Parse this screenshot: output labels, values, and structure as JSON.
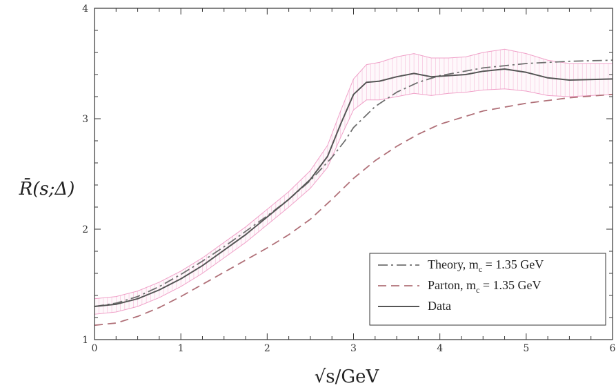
{
  "chart_data": {
    "type": "line",
    "title": "",
    "xlabel": "√s/GeV",
    "ylabel": "R̄(s;Δ)",
    "xlim": [
      0,
      6
    ],
    "ylim": [
      1,
      4
    ],
    "x_ticks": [
      "0",
      "1",
      "2",
      "3",
      "4",
      "5",
      "6"
    ],
    "y_ticks": [
      "1",
      "2",
      "3",
      "4"
    ],
    "grid": false,
    "legend_position": "bottom-right",
    "series": [
      {
        "name": "Theory, m",
        "name_subscript": "c",
        "name_suffix": " = 1.35 GeV",
        "style": "dash-dot",
        "color": "#6f6f6f",
        "x": [
          0,
          0.25,
          0.5,
          0.75,
          1.0,
          1.25,
          1.5,
          1.75,
          2.0,
          2.25,
          2.5,
          2.75,
          2.9,
          3.0,
          3.25,
          3.5,
          3.75,
          4.0,
          4.5,
          5.0,
          5.5,
          6.0
        ],
        "y": [
          1.3,
          1.33,
          1.39,
          1.48,
          1.59,
          1.71,
          1.84,
          1.98,
          2.12,
          2.27,
          2.44,
          2.65,
          2.8,
          2.92,
          3.11,
          3.24,
          3.33,
          3.39,
          3.46,
          3.5,
          3.52,
          3.53
        ]
      },
      {
        "name": "Parton, m",
        "name_subscript": "c",
        "name_suffix": " = 1.35 GeV",
        "style": "dashed",
        "color": "#b07078",
        "x": [
          0,
          0.25,
          0.5,
          0.75,
          1.0,
          1.25,
          1.5,
          1.75,
          2.0,
          2.25,
          2.5,
          2.75,
          3.0,
          3.25,
          3.5,
          3.75,
          4.0,
          4.5,
          5.0,
          5.5,
          6.0
        ],
        "y": [
          1.13,
          1.15,
          1.21,
          1.29,
          1.39,
          1.5,
          1.61,
          1.72,
          1.83,
          1.95,
          2.09,
          2.27,
          2.46,
          2.62,
          2.75,
          2.86,
          2.95,
          3.07,
          3.14,
          3.19,
          3.22
        ]
      },
      {
        "name": "Data",
        "style": "solid",
        "color": "#555555",
        "x": [
          0,
          0.25,
          0.5,
          0.75,
          1.0,
          1.25,
          1.5,
          1.75,
          2.0,
          2.25,
          2.5,
          2.7,
          2.85,
          3.0,
          3.15,
          3.3,
          3.5,
          3.7,
          3.9,
          4.1,
          4.3,
          4.5,
          4.75,
          5.0,
          5.25,
          5.5,
          6.0
        ],
        "y": [
          1.3,
          1.32,
          1.37,
          1.45,
          1.55,
          1.67,
          1.81,
          1.95,
          2.11,
          2.27,
          2.45,
          2.66,
          2.95,
          3.22,
          3.33,
          3.34,
          3.38,
          3.41,
          3.38,
          3.39,
          3.4,
          3.43,
          3.45,
          3.42,
          3.37,
          3.35,
          3.36
        ]
      }
    ],
    "error_band": {
      "color": "#f0a0c8",
      "x": [
        0,
        0.25,
        0.5,
        0.75,
        1.0,
        1.25,
        1.5,
        1.75,
        2.0,
        2.25,
        2.5,
        2.7,
        2.85,
        3.0,
        3.15,
        3.3,
        3.5,
        3.7,
        3.9,
        4.1,
        4.3,
        4.5,
        4.75,
        5.0,
        5.25,
        5.5,
        6.0
      ],
      "upper": [
        1.37,
        1.39,
        1.44,
        1.52,
        1.62,
        1.74,
        1.88,
        2.02,
        2.18,
        2.34,
        2.53,
        2.76,
        3.07,
        3.36,
        3.49,
        3.51,
        3.56,
        3.59,
        3.55,
        3.55,
        3.56,
        3.6,
        3.63,
        3.59,
        3.53,
        3.5,
        3.5
      ],
      "lower": [
        1.23,
        1.25,
        1.3,
        1.38,
        1.48,
        1.6,
        1.74,
        1.88,
        2.04,
        2.2,
        2.37,
        2.56,
        2.83,
        3.08,
        3.17,
        3.17,
        3.2,
        3.23,
        3.21,
        3.23,
        3.24,
        3.26,
        3.27,
        3.25,
        3.21,
        3.2,
        3.22
      ]
    }
  }
}
